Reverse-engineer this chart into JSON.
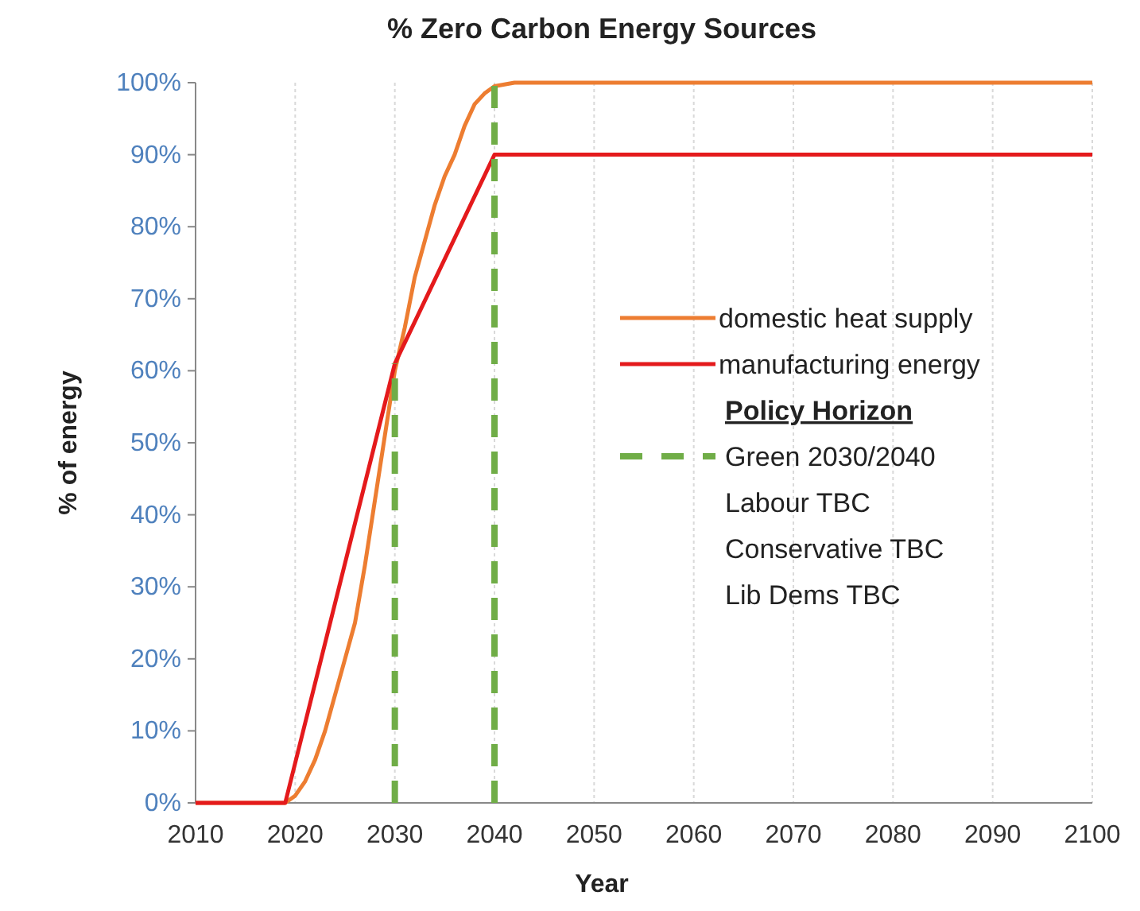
{
  "chart_data": {
    "type": "line",
    "title": "% Zero Carbon Energy Sources",
    "xlabel": "Year",
    "ylabel": "% of energy",
    "legend_title": "Policy Horizon",
    "series": [
      {
        "name": "domestic heat supply",
        "color": "#ed7d31",
        "x": [
          2010,
          2019,
          2020,
          2021,
          2022,
          2023,
          2024,
          2025,
          2026,
          2027,
          2028,
          2029,
          2030,
          2031,
          2032,
          2033,
          2034,
          2035,
          2036,
          2037,
          2038,
          2039,
          2040,
          2042,
          2100
        ],
        "values": [
          0,
          0,
          1,
          3,
          6,
          10,
          15,
          20,
          25,
          33,
          42,
          51,
          60,
          66,
          73,
          78,
          83,
          87,
          90,
          94,
          97,
          98.5,
          99.5,
          100,
          100
        ]
      },
      {
        "name": "manufacturing energy",
        "color": "#e41a1c",
        "x": [
          2010,
          2019,
          2030,
          2040,
          2100
        ],
        "values": [
          0,
          0,
          61,
          90,
          90
        ]
      },
      {
        "name": "Green 2030/2040",
        "color": "#70ad47",
        "line_style": "dashed",
        "x": [
          2030,
          2030,
          2035,
          2040,
          2040
        ],
        "values": [
          0,
          61,
          null,
          0,
          100
        ]
      }
    ],
    "annotations": [
      "Labour TBC",
      "Conservative TBC",
      "Lib Dems TBC"
    ],
    "xlim": [
      2010,
      2100
    ],
    "xticks": [
      2010,
      2020,
      2030,
      2040,
      2050,
      2060,
      2070,
      2080,
      2090,
      2100
    ],
    "ylim": [
      0,
      100
    ],
    "yticks": [
      {
        "value": 0,
        "label": "0%"
      },
      {
        "value": 10,
        "label": "10%"
      },
      {
        "value": 20,
        "label": "20%"
      },
      {
        "value": 30,
        "label": "30%"
      },
      {
        "value": 40,
        "label": "40%"
      },
      {
        "value": 50,
        "label": "50%"
      },
      {
        "value": 60,
        "label": "60%"
      },
      {
        "value": 70,
        "label": "70%"
      },
      {
        "value": 80,
        "label": "80%"
      },
      {
        "value": 90,
        "label": "90%"
      },
      {
        "value": 100,
        "label": "100%"
      }
    ],
    "grid": "x",
    "legend": "right",
    "marker": "none"
  }
}
